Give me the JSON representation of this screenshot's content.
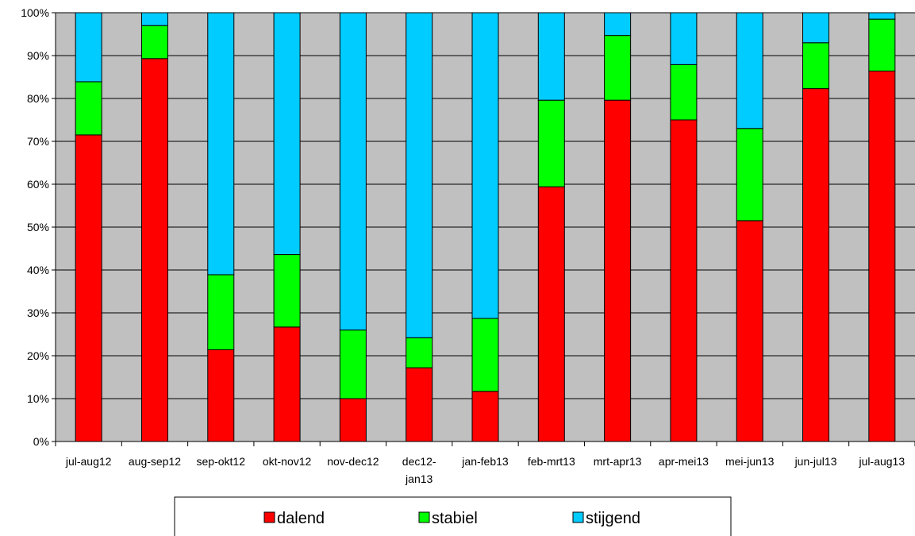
{
  "chart_data": {
    "type": "bar",
    "stacked": true,
    "normalized": true,
    "title": "",
    "xlabel": "",
    "ylabel": "",
    "ylim": [
      0,
      100
    ],
    "y_ticks": [
      "0%",
      "10%",
      "20%",
      "30%",
      "40%",
      "50%",
      "60%",
      "70%",
      "80%",
      "90%",
      "100%"
    ],
    "grid": true,
    "legend_position": "bottom",
    "plot_background": "#c0c0c0",
    "categories": [
      [
        "jul-aug12"
      ],
      [
        "aug-sep12"
      ],
      [
        "sep-okt12"
      ],
      [
        "okt-nov12"
      ],
      [
        "nov-dec12"
      ],
      [
        "dec12-",
        "jan13"
      ],
      [
        "jan-feb13"
      ],
      [
        "feb-mrt13"
      ],
      [
        "mrt-apr13"
      ],
      [
        "apr-mei13"
      ],
      [
        "mei-jun13"
      ],
      [
        "jun-jul13"
      ],
      [
        "jul-aug13"
      ]
    ],
    "series": [
      {
        "name": "dalend",
        "color": "#ff0000",
        "values": [
          71.5,
          89.3,
          21.4,
          26.7,
          10.0,
          17.2,
          11.7,
          59.4,
          79.6,
          75.0,
          51.5,
          82.3,
          86.4
        ]
      },
      {
        "name": "stabiel",
        "color": "#00ff00",
        "values": [
          12.4,
          7.7,
          17.5,
          16.9,
          16.0,
          7.0,
          17.0,
          20.2,
          15.1,
          12.9,
          21.5,
          10.7,
          12.1
        ]
      },
      {
        "name": "stijgend",
        "color": "#00ccff",
        "values": [
          16.1,
          3.0,
          61.1,
          56.4,
          74.0,
          75.8,
          71.3,
          20.4,
          5.3,
          12.1,
          27.0,
          7.0,
          1.5
        ]
      }
    ]
  }
}
